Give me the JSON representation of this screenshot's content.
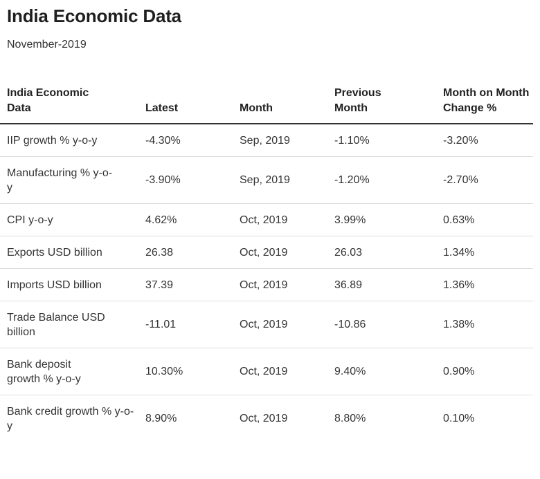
{
  "title": "India Economic Data",
  "subtitle": "November-2019",
  "chart_data": {
    "type": "table",
    "columns": [
      "India Economic Data",
      "Latest",
      "Month",
      "Previous Month",
      "Month on Month Change %"
    ],
    "rows": [
      [
        "IIP growth % y-o-y",
        "-4.30%",
        "Sep, 2019",
        "-1.10%",
        "-3.20%"
      ],
      [
        "Manufacturing % y-o-y",
        "-3.90%",
        "Sep, 2019",
        "-1.20%",
        "-2.70%"
      ],
      [
        "CPI y-o-y",
        "4.62%",
        "Oct, 2019",
        "3.99%",
        "0.63%"
      ],
      [
        "Exports USD billion",
        "26.38",
        "Oct, 2019",
        "26.03",
        "1.34%"
      ],
      [
        "Imports USD billion",
        "37.39",
        "Oct, 2019",
        "36.89",
        "1.36%"
      ],
      [
        "Trade Balance USD billion",
        "-11.01",
        "Oct, 2019",
        "-10.86",
        "1.38%"
      ],
      [
        "Bank deposit growth % y-o-y",
        "10.30%",
        "Oct, 2019",
        "9.40%",
        "0.90%"
      ],
      [
        "Bank credit growth % y-o-y",
        "8.90%",
        "Oct, 2019",
        "8.80%",
        "0.10%"
      ]
    ]
  }
}
